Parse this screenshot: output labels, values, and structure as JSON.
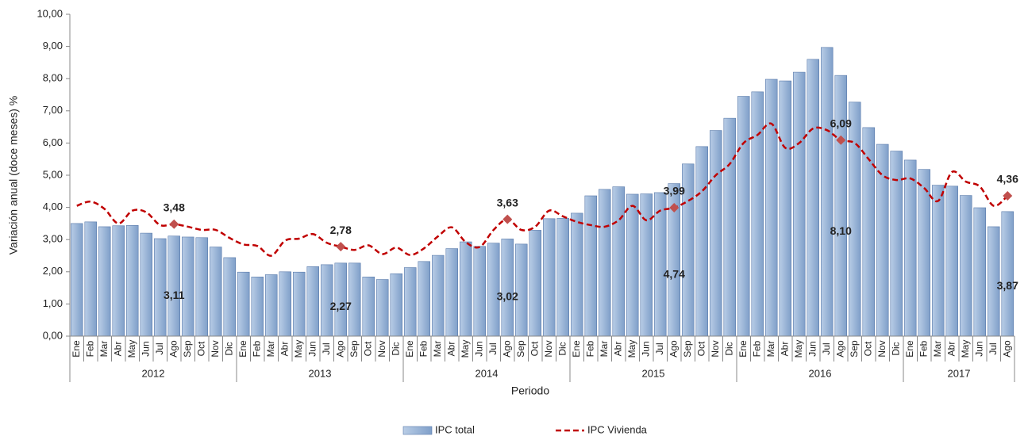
{
  "chart_data": {
    "type": "bar_line",
    "y_label": "Variación anual (doce meses) %",
    "x_label": "Periodo",
    "category_groups": [
      {
        "label": "2012",
        "categories": [
          "Ene",
          "Feb",
          "Mar",
          "Abr",
          "May",
          "Jun",
          "Jul",
          "Ago",
          "Sep",
          "Oct",
          "Nov",
          "Dic"
        ]
      },
      {
        "label": "2013",
        "categories": [
          "Ene",
          "Feb",
          "Mar",
          "Abr",
          "May",
          "Jun",
          "Jul",
          "Ago",
          "Sep",
          "Oct",
          "Nov",
          "Dic"
        ]
      },
      {
        "label": "2014",
        "categories": [
          "Ene",
          "Feb",
          "Mar",
          "Abr",
          "May",
          "Jun",
          "Jul",
          "Ago",
          "Sep",
          "Oct",
          "Nov",
          "Dic"
        ]
      },
      {
        "label": "2015",
        "categories": [
          "Ene",
          "Feb",
          "Mar",
          "Abr",
          "May",
          "Jun",
          "Jul",
          "Ago",
          "Sep",
          "Oct",
          "Nov",
          "Dic"
        ]
      },
      {
        "label": "2016",
        "categories": [
          "Ene",
          "Feb",
          "Mar",
          "Abr",
          "May",
          "Jun",
          "Jul",
          "Ago",
          "Sep",
          "Oct",
          "Nov",
          "Dic"
        ]
      },
      {
        "label": "2017",
        "categories": [
          "Ene",
          "Feb",
          "Mar",
          "Abr",
          "May",
          "Jun",
          "Jul",
          "Ago"
        ]
      }
    ],
    "series": [
      {
        "name": "IPC total",
        "type": "bar",
        "color": "#95b3d7",
        "values": [
          3.5,
          3.55,
          3.4,
          3.43,
          3.44,
          3.2,
          3.03,
          3.11,
          3.08,
          3.06,
          2.77,
          2.44,
          1.99,
          1.84,
          1.91,
          2.0,
          1.99,
          2.16,
          2.22,
          2.27,
          2.27,
          1.84,
          1.76,
          1.94,
          2.13,
          2.32,
          2.51,
          2.72,
          2.93,
          2.79,
          2.89,
          3.02,
          2.86,
          3.29,
          3.65,
          3.66,
          3.82,
          4.36,
          4.56,
          4.64,
          4.41,
          4.42,
          4.46,
          4.74,
          5.35,
          5.89,
          6.39,
          6.77,
          7.45,
          7.59,
          7.98,
          7.93,
          8.2,
          8.6,
          8.97,
          8.1,
          7.27,
          6.48,
          5.96,
          5.75,
          5.47,
          5.18,
          4.69,
          4.66,
          4.37,
          3.99,
          3.4,
          3.87
        ],
        "value_labels": [
          null,
          null,
          null,
          null,
          null,
          null,
          null,
          "3,11",
          null,
          null,
          null,
          null,
          null,
          null,
          null,
          null,
          null,
          null,
          null,
          "2,27",
          null,
          null,
          null,
          null,
          null,
          null,
          null,
          null,
          null,
          null,
          null,
          "3,02",
          null,
          null,
          null,
          null,
          null,
          null,
          null,
          null,
          null,
          null,
          null,
          "4,74",
          null,
          null,
          null,
          null,
          null,
          null,
          null,
          null,
          null,
          null,
          null,
          "8,10",
          null,
          null,
          null,
          null,
          null,
          null,
          null,
          null,
          null,
          null,
          null,
          "3,87"
        ]
      },
      {
        "name": "IPC Vivienda",
        "type": "line",
        "color": "#c00000",
        "values": [
          4.05,
          4.18,
          3.95,
          3.5,
          3.9,
          3.85,
          3.45,
          3.48,
          3.4,
          3.3,
          3.3,
          3.05,
          2.85,
          2.8,
          2.5,
          2.97,
          3.03,
          3.17,
          2.9,
          2.78,
          2.68,
          2.82,
          2.55,
          2.75,
          2.52,
          2.73,
          3.1,
          3.38,
          2.92,
          2.77,
          3.3,
          3.63,
          3.3,
          3.4,
          3.9,
          3.72,
          3.55,
          3.45,
          3.4,
          3.6,
          4.05,
          3.6,
          3.9,
          3.99,
          4.2,
          4.5,
          5.0,
          5.35,
          6.0,
          6.25,
          6.6,
          5.85,
          6.0,
          6.45,
          6.4,
          6.09,
          6.0,
          5.5,
          5.0,
          4.85,
          4.9,
          4.6,
          4.2,
          5.1,
          4.8,
          4.65,
          4.05,
          4.36
        ],
        "value_labels": [
          null,
          null,
          null,
          null,
          null,
          null,
          null,
          "3,48",
          null,
          null,
          null,
          null,
          null,
          null,
          null,
          null,
          null,
          null,
          null,
          "2,78",
          null,
          null,
          null,
          null,
          null,
          null,
          null,
          null,
          null,
          null,
          null,
          "3,63",
          null,
          null,
          null,
          null,
          null,
          null,
          null,
          null,
          null,
          null,
          null,
          "3,99",
          null,
          null,
          null,
          null,
          null,
          null,
          null,
          null,
          null,
          null,
          null,
          "6,09",
          null,
          null,
          null,
          null,
          null,
          null,
          null,
          null,
          null,
          null,
          null,
          "4,36"
        ]
      }
    ],
    "ylim": [
      0,
      10
    ],
    "yticks": [
      {
        "value": 0,
        "label": "0,00"
      },
      {
        "value": 1,
        "label": "1,00"
      },
      {
        "value": 2,
        "label": "2,00"
      },
      {
        "value": 3,
        "label": "3,00"
      },
      {
        "value": 4,
        "label": "4,00"
      },
      {
        "value": 5,
        "label": "5,00"
      },
      {
        "value": 6,
        "label": "6,00"
      },
      {
        "value": 7,
        "label": "7,00"
      },
      {
        "value": 8,
        "label": "8,00"
      },
      {
        "value": 9,
        "label": "9,00"
      },
      {
        "value": 10,
        "label": "10,00"
      }
    ],
    "legend": "bottom"
  }
}
